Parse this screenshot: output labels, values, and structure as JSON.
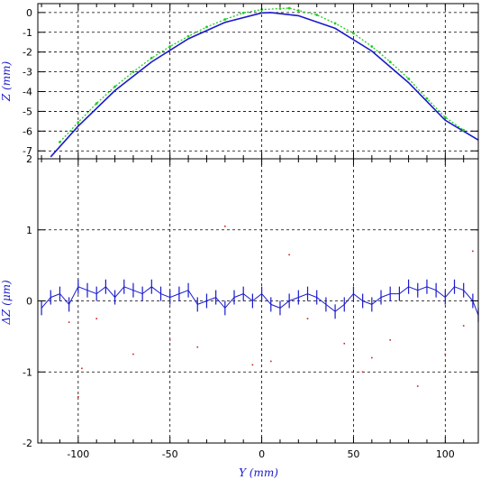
{
  "chart_data": [
    {
      "type": "line",
      "panel": "top",
      "ylabel": "Z (mm)",
      "xlim": [
        -122,
        118
      ],
      "ylim": [
        -7.4,
        0.45
      ],
      "xticks": [
        -100,
        -50,
        0,
        50,
        100
      ],
      "yticks": [
        0,
        -1,
        -2,
        -3,
        -4,
        -5,
        -6,
        -7
      ],
      "ytick_labels": [
        "0",
        "-1",
        "-2",
        "-3",
        "-4",
        "-5",
        "-6",
        "-7"
      ],
      "grid": true,
      "series": [
        {
          "style": "line",
          "color": "#1a1acc",
          "x": [
            -115,
            -100,
            -80,
            -60,
            -40,
            -20,
            0,
            5,
            20,
            40,
            60,
            80,
            100,
            118
          ],
          "y": [
            -7.3,
            -5.75,
            -3.95,
            -2.5,
            -1.33,
            -0.5,
            -0.02,
            0.0,
            -0.16,
            -0.8,
            -1.95,
            -3.55,
            -5.45,
            -6.45
          ]
        },
        {
          "style": "points",
          "color": "#22cc22",
          "x": [
            -110,
            -100,
            -90,
            -80,
            -70,
            -60,
            -50,
            -40,
            -30,
            -20,
            -10,
            0,
            10,
            15,
            20,
            30,
            40,
            50,
            60,
            70,
            80,
            90,
            100,
            110
          ],
          "y": [
            -6.55,
            -5.55,
            -4.6,
            -3.75,
            -3.0,
            -2.3,
            -1.72,
            -1.2,
            -0.73,
            -0.35,
            -0.02,
            0.15,
            0.2,
            0.22,
            0.1,
            -0.12,
            -0.55,
            -1.05,
            -1.72,
            -2.5,
            -3.35,
            -4.35,
            -5.3,
            -5.95
          ]
        }
      ]
    },
    {
      "type": "scatter",
      "panel": "bottom",
      "xlabel": "Y (mm)",
      "ylabel": "ΔZ (μm)",
      "xlim": [
        -122,
        118
      ],
      "ylim": [
        -2,
        2
      ],
      "xticks": [
        -100,
        -50,
        0,
        50,
        100
      ],
      "xtick_labels": [
        "-100",
        "-50",
        "0",
        "50",
        "100"
      ],
      "yticks": [
        2,
        1,
        0,
        -1,
        -2
      ],
      "ytick_labels": [
        "2",
        "1",
        "0",
        "-1",
        "-2"
      ],
      "grid": true,
      "series": [
        {
          "style": "residual",
          "color": "#1a1acc",
          "x": [
            -120,
            -115,
            -110,
            -105,
            -100,
            -95,
            -90,
            -85,
            -80,
            -75,
            -70,
            -65,
            -60,
            -55,
            -50,
            -45,
            -40,
            -35,
            -30,
            -25,
            -20,
            -15,
            -10,
            -5,
            0,
            5,
            10,
            15,
            20,
            25,
            30,
            35,
            40,
            45,
            50,
            55,
            60,
            65,
            70,
            75,
            80,
            85,
            90,
            95,
            100,
            105,
            110,
            115,
            118
          ],
          "y": [
            -0.1,
            0.05,
            0.1,
            -0.05,
            0.2,
            0.15,
            0.1,
            0.2,
            0.05,
            0.2,
            0.15,
            0.1,
            0.2,
            0.1,
            0.05,
            0.1,
            0.15,
            -0.05,
            0.0,
            0.05,
            -0.1,
            0.05,
            0.1,
            0.0,
            0.1,
            -0.05,
            -0.1,
            0.0,
            0.05,
            0.1,
            0.05,
            -0.05,
            -0.15,
            -0.05,
            0.1,
            0.0,
            -0.05,
            0.05,
            0.1,
            0.1,
            0.2,
            0.15,
            0.2,
            0.15,
            0.05,
            0.2,
            0.15,
            0.0,
            -0.2
          ]
        },
        {
          "style": "outliers",
          "color": "#cc2222",
          "x": [
            -105,
            -100,
            -98,
            -90,
            -70,
            -50,
            -35,
            -20,
            -5,
            5,
            15,
            25,
            45,
            55,
            60,
            70,
            85,
            100,
            110,
            115
          ],
          "y": [
            -0.3,
            -1.35,
            -0.95,
            -0.25,
            -0.75,
            -0.55,
            -0.65,
            1.05,
            -0.9,
            -0.85,
            0.65,
            -0.25,
            -0.6,
            -1.0,
            -0.8,
            -0.55,
            -1.2,
            -0.75,
            -0.35,
            0.7
          ]
        }
      ]
    }
  ]
}
